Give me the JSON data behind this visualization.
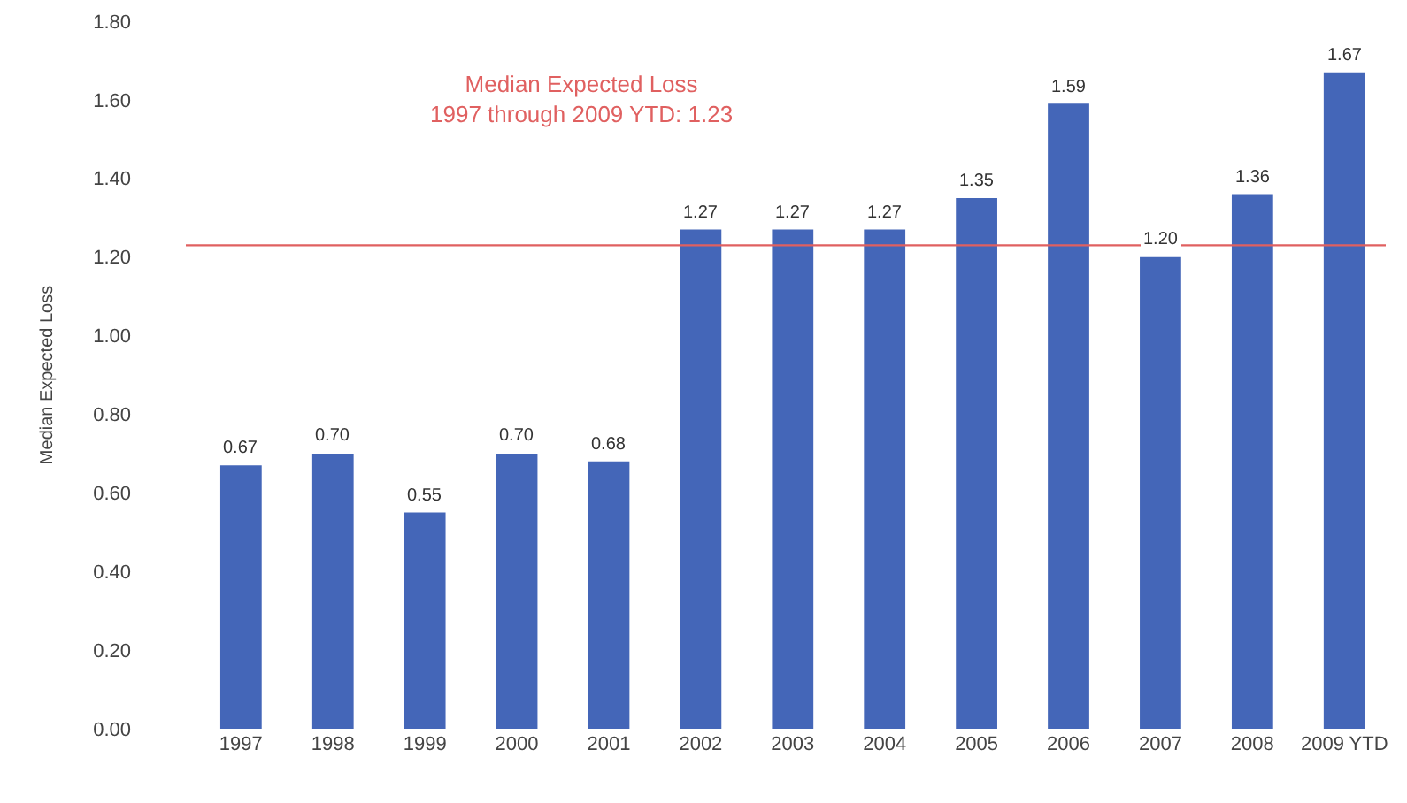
{
  "chart_data": {
    "type": "bar",
    "ylabel": "Median Expected Loss",
    "categories": [
      "1997",
      "1998",
      "1999",
      "2000",
      "2001",
      "2002",
      "2003",
      "2004",
      "2005",
      "2006",
      "2007",
      "2008",
      "2009 YTD"
    ],
    "values": [
      0.67,
      0.7,
      0.55,
      0.7,
      0.68,
      1.27,
      1.27,
      1.27,
      1.35,
      1.59,
      1.2,
      1.36,
      1.67
    ],
    "color": "#4466b8",
    "value_labels": [
      "0.67",
      "0.70",
      "0.55",
      "0.70",
      "0.68",
      "1.27",
      "1.27",
      "1.27",
      "1.35",
      "1.59",
      "1.20",
      "1.36",
      "1.67"
    ],
    "ylim": [
      0,
      1.8
    ],
    "yticks": [
      {
        "value": 0,
        "label": "0.00"
      },
      {
        "value": 0.2,
        "label": "0.20"
      },
      {
        "value": 0.4,
        "label": "0.40"
      },
      {
        "value": 0.6,
        "label": "0.60"
      },
      {
        "value": 0.8,
        "label": "0.80"
      },
      {
        "value": 1,
        "label": "1.00"
      },
      {
        "value": 1.2,
        "label": "1.20"
      },
      {
        "value": 1.4,
        "label": "1.40"
      },
      {
        "value": 1.6,
        "label": "1.60"
      },
      {
        "value": 1.8,
        "label": "1.80"
      }
    ],
    "ref_lines": [
      {
        "axis": "y",
        "value": 1.23,
        "label": "Median Expected Loss\n1997 through 2009 YTD: 1.23",
        "color": "#e06060"
      }
    ],
    "grid": false
  }
}
